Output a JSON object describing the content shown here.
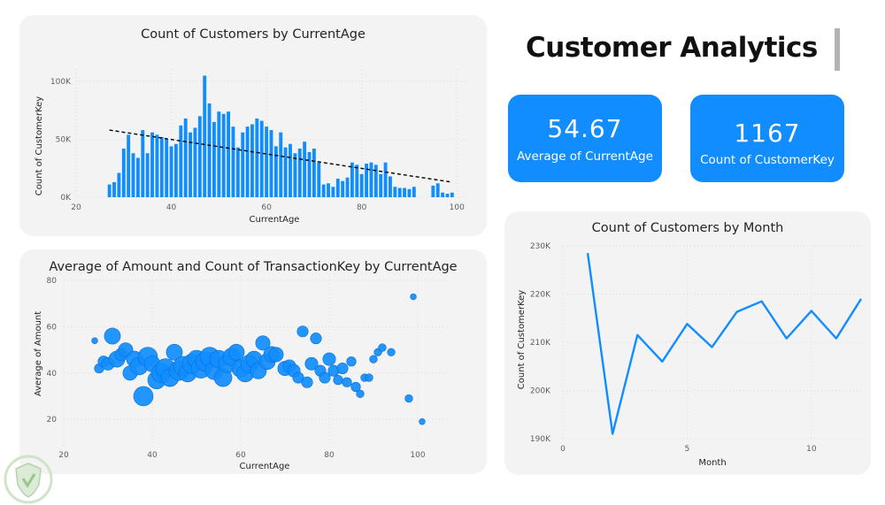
{
  "page": {
    "title": "Customer Analytics"
  },
  "kpis": [
    {
      "value": "54.67",
      "label": "Average of CurrentAge"
    },
    {
      "value": "1167",
      "label": "Count of CustomerKey"
    }
  ],
  "colors": {
    "accent": "#118dff",
    "card_bg": "#f3f3f3",
    "trend": "#000000"
  },
  "chart_data": [
    {
      "id": "age_hist",
      "type": "bar",
      "title": "Count of Customers by CurrentAge",
      "xlabel": "CurrentAge",
      "ylabel": "Count of CustomerKey",
      "xlim": [
        20,
        102
      ],
      "ylim": [
        0,
        110000
      ],
      "xticks": [
        20,
        40,
        60,
        80,
        100
      ],
      "yticks": [
        0,
        50000,
        100000
      ],
      "ytick_labels": [
        "0K",
        "50K",
        "100K"
      ],
      "x": [
        27,
        28,
        29,
        30,
        31,
        32,
        33,
        34,
        35,
        36,
        37,
        38,
        39,
        40,
        41,
        42,
        43,
        44,
        45,
        46,
        47,
        48,
        49,
        50,
        51,
        52,
        53,
        54,
        55,
        56,
        57,
        58,
        59,
        60,
        61,
        62,
        63,
        64,
        65,
        66,
        67,
        68,
        69,
        70,
        71,
        72,
        73,
        74,
        75,
        76,
        77,
        78,
        79,
        80,
        81,
        82,
        83,
        84,
        85,
        86,
        87,
        88,
        89,
        90,
        91,
        95,
        96,
        97,
        98,
        99
      ],
      "values": [
        11000,
        13000,
        21000,
        42000,
        54000,
        38000,
        34000,
        58000,
        38000,
        56000,
        54000,
        52000,
        50000,
        44000,
        46000,
        62000,
        68000,
        56000,
        60000,
        70000,
        105000,
        81000,
        65000,
        74000,
        72000,
        74000,
        61000,
        43000,
        56000,
        61000,
        63000,
        68000,
        66000,
        61000,
        58000,
        44000,
        56000,
        43000,
        46000,
        38000,
        42000,
        48000,
        39000,
        42000,
        30000,
        11000,
        12000,
        9000,
        16000,
        14000,
        17000,
        30000,
        28000,
        20000,
        29000,
        30000,
        28000,
        20000,
        30000,
        18000,
        9000,
        8000,
        8000,
        7000,
        9000,
        10000,
        12000,
        4000,
        3000,
        4000
      ],
      "trendline": {
        "x": [
          27,
          99
        ],
        "y": [
          58000,
          13000
        ]
      }
    },
    {
      "id": "amount_scatter",
      "type": "scatter",
      "title": "Average of Amount and Count of TransactionKey by CurrentAge",
      "xlabel": "CurrentAge",
      "ylabel": "Average of Amount",
      "xlim": [
        20,
        102
      ],
      "ylim": [
        12,
        82
      ],
      "xticks": [
        20,
        40,
        60,
        80,
        100
      ],
      "yticks": [
        20,
        40,
        60,
        80
      ],
      "points": [
        {
          "x": 27,
          "y": 54,
          "size": 2
        },
        {
          "x": 28,
          "y": 42,
          "size": 4
        },
        {
          "x": 29,
          "y": 45,
          "size": 5
        },
        {
          "x": 30,
          "y": 44,
          "size": 6
        },
        {
          "x": 31,
          "y": 56,
          "size": 8
        },
        {
          "x": 32,
          "y": 46,
          "size": 8
        },
        {
          "x": 33,
          "y": 48,
          "size": 6
        },
        {
          "x": 34,
          "y": 50,
          "size": 7
        },
        {
          "x": 35,
          "y": 40,
          "size": 7
        },
        {
          "x": 36,
          "y": 46,
          "size": 8
        },
        {
          "x": 37,
          "y": 43,
          "size": 9
        },
        {
          "x": 38,
          "y": 30,
          "size": 10
        },
        {
          "x": 39,
          "y": 47,
          "size": 10
        },
        {
          "x": 40,
          "y": 44,
          "size": 8
        },
        {
          "x": 41,
          "y": 37,
          "size": 9
        },
        {
          "x": 42,
          "y": 40,
          "size": 10
        },
        {
          "x": 43,
          "y": 42,
          "size": 10
        },
        {
          "x": 44,
          "y": 38,
          "size": 9
        },
        {
          "x": 45,
          "y": 49,
          "size": 8
        },
        {
          "x": 46,
          "y": 41,
          "size": 10
        },
        {
          "x": 47,
          "y": 43,
          "size": 10
        },
        {
          "x": 48,
          "y": 40,
          "size": 9
        },
        {
          "x": 49,
          "y": 44,
          "size": 10
        },
        {
          "x": 50,
          "y": 46,
          "size": 9
        },
        {
          "x": 51,
          "y": 42,
          "size": 10
        },
        {
          "x": 52,
          "y": 45,
          "size": 10
        },
        {
          "x": 53,
          "y": 47,
          "size": 10
        },
        {
          "x": 54,
          "y": 41,
          "size": 9
        },
        {
          "x": 55,
          "y": 46,
          "size": 9
        },
        {
          "x": 56,
          "y": 38,
          "size": 9
        },
        {
          "x": 57,
          "y": 44,
          "size": 9
        },
        {
          "x": 58,
          "y": 47,
          "size": 9
        },
        {
          "x": 59,
          "y": 49,
          "size": 8
        },
        {
          "x": 60,
          "y": 42,
          "size": 9
        },
        {
          "x": 61,
          "y": 40,
          "size": 9
        },
        {
          "x": 62,
          "y": 44,
          "size": 9
        },
        {
          "x": 63,
          "y": 46,
          "size": 8
        },
        {
          "x": 64,
          "y": 41,
          "size": 8
        },
        {
          "x": 65,
          "y": 53,
          "size": 7
        },
        {
          "x": 66,
          "y": 45,
          "size": 8
        },
        {
          "x": 67,
          "y": 48,
          "size": 8
        },
        {
          "x": 68,
          "y": 48,
          "size": 7
        },
        {
          "x": 70,
          "y": 42,
          "size": 7
        },
        {
          "x": 71,
          "y": 43,
          "size": 6
        },
        {
          "x": 72,
          "y": 41,
          "size": 6
        },
        {
          "x": 73,
          "y": 38,
          "size": 5
        },
        {
          "x": 74,
          "y": 58,
          "size": 5
        },
        {
          "x": 75,
          "y": 36,
          "size": 5
        },
        {
          "x": 76,
          "y": 44,
          "size": 6
        },
        {
          "x": 77,
          "y": 55,
          "size": 5
        },
        {
          "x": 78,
          "y": 41,
          "size": 5
        },
        {
          "x": 79,
          "y": 38,
          "size": 5
        },
        {
          "x": 80,
          "y": 46,
          "size": 6
        },
        {
          "x": 81,
          "y": 41,
          "size": 5
        },
        {
          "x": 82,
          "y": 37,
          "size": 4
        },
        {
          "x": 83,
          "y": 42,
          "size": 5
        },
        {
          "x": 84,
          "y": 36,
          "size": 4
        },
        {
          "x": 85,
          "y": 45,
          "size": 4
        },
        {
          "x": 86,
          "y": 34,
          "size": 4
        },
        {
          "x": 87,
          "y": 31,
          "size": 3
        },
        {
          "x": 88,
          "y": 38,
          "size": 3
        },
        {
          "x": 89,
          "y": 38,
          "size": 3
        },
        {
          "x": 90,
          "y": 46,
          "size": 3
        },
        {
          "x": 91,
          "y": 49,
          "size": 3
        },
        {
          "x": 92,
          "y": 51,
          "size": 3
        },
        {
          "x": 94,
          "y": 49,
          "size": 3
        },
        {
          "x": 98,
          "y": 29,
          "size": 3
        },
        {
          "x": 99,
          "y": 73,
          "size": 2
        },
        {
          "x": 101,
          "y": 19,
          "size": 2
        }
      ]
    },
    {
      "id": "month_line",
      "type": "line",
      "title": "Count of Customers by Month",
      "xlabel": "Month",
      "ylabel": "Count of CustomerKey",
      "xlim": [
        0,
        12
      ],
      "ylim": [
        190000,
        230000
      ],
      "xticks": [
        0,
        5,
        10
      ],
      "yticks": [
        190000,
        200000,
        210000,
        220000,
        230000
      ],
      "ytick_labels": [
        "190K",
        "200K",
        "210K",
        "220K",
        "230K"
      ],
      "x": [
        1,
        2,
        3,
        4,
        5,
        6,
        7,
        8,
        9,
        10,
        11,
        12
      ],
      "values": [
        228500,
        191000,
        211500,
        206000,
        213800,
        209000,
        216300,
        218500,
        210800,
        216500,
        210800,
        219000
      ]
    }
  ]
}
